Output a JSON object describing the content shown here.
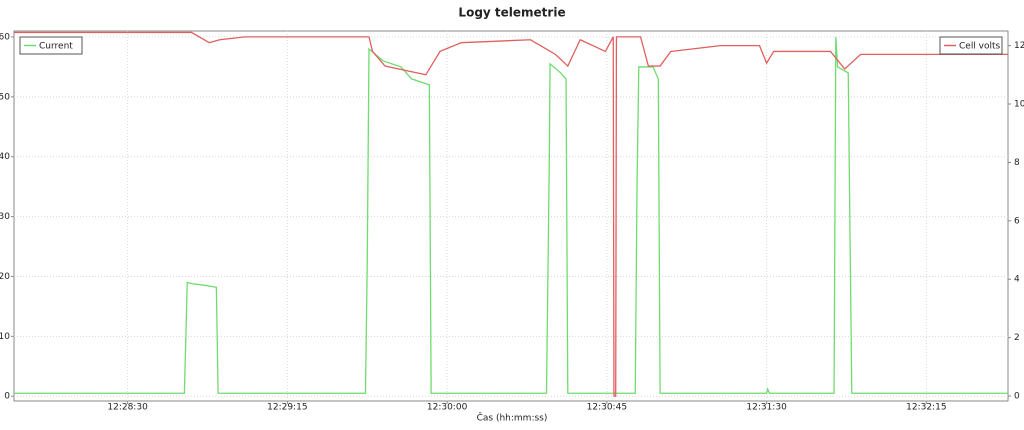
{
  "chart_data": {
    "type": "line",
    "title": "Logy telemetrie",
    "x_label": "Čas (hh:mm:ss)",
    "xlim": [
      44878,
      45158
    ],
    "xticks": [
      {
        "value": 44910,
        "label": "12:28:30"
      },
      {
        "value": 44955,
        "label": "12:29:15"
      },
      {
        "value": 45000,
        "label": "12:30:00"
      },
      {
        "value": 45045,
        "label": "12:30:45"
      },
      {
        "value": 45090,
        "label": "12:31:30"
      },
      {
        "value": 45135,
        "label": "12:32:15"
      }
    ],
    "ylim": [
      -0.8,
      61
    ],
    "yticks": [
      0,
      10,
      20,
      30,
      40,
      50,
      60
    ],
    "y2lim": [
      -0.17,
      12.5
    ],
    "y2ticks": [
      0,
      2,
      4,
      6,
      8,
      10,
      12
    ],
    "grid": true,
    "legend": [
      "top-left",
      "top-right"
    ],
    "series": [
      {
        "name": "Current",
        "color": "#6fdc6f",
        "x": [
          44878,
          44926,
          44926.8,
          44928,
          44932,
          44935,
          44935.5,
          44977,
          44977.5,
          44978,
          44982,
          44987,
          44990,
          44995,
          44995.5,
          45028,
          45028.8,
          45029,
          45032,
          45033.5,
          45034,
          45053,
          45053.5,
          45054,
          45058,
          45059.5,
          45060,
          45090,
          45090.3,
          45090.8,
          45109,
          45109.5,
          45110,
          45113,
          45113.5,
          45114,
          45158
        ],
        "values": [
          0.5,
          0.5,
          19,
          18.8,
          18.5,
          18.2,
          0.5,
          0.5,
          22,
          58,
          56,
          55,
          53,
          52,
          0.5,
          0.5,
          40,
          55.5,
          54,
          53,
          0.5,
          0.5,
          35,
          55,
          55,
          53,
          0.5,
          0.5,
          1.2,
          0.5,
          0.5,
          60,
          55,
          54,
          27,
          0.5,
          0.5
        ]
      },
      {
        "name": "Cell volts",
        "color": "#e06060",
        "axis": "y2",
        "x": [
          44878,
          44928,
          44933,
          44936,
          44943,
          44978,
          44979,
          44982.5,
          44994,
          44998,
          45004,
          45023.5,
          45030.5,
          45034,
          45037.5,
          45044.6,
          45046.8,
          45047,
          45047.5,
          45047.7,
          45054.5,
          45056.7,
          45060,
          45063,
          45077,
          45088,
          45090,
          45092,
          45108,
          45112,
          45116.5,
          45158
        ],
        "values": [
          12.45,
          12.45,
          12.1,
          12.2,
          12.3,
          12.3,
          11.8,
          11.3,
          11.0,
          11.8,
          12.1,
          12.2,
          11.7,
          11.3,
          12.2,
          11.8,
          12.3,
          0,
          0,
          12.3,
          12.3,
          11.3,
          11.3,
          11.8,
          12.0,
          12.0,
          11.4,
          11.8,
          11.8,
          11.2,
          11.7,
          11.7
        ]
      }
    ]
  }
}
